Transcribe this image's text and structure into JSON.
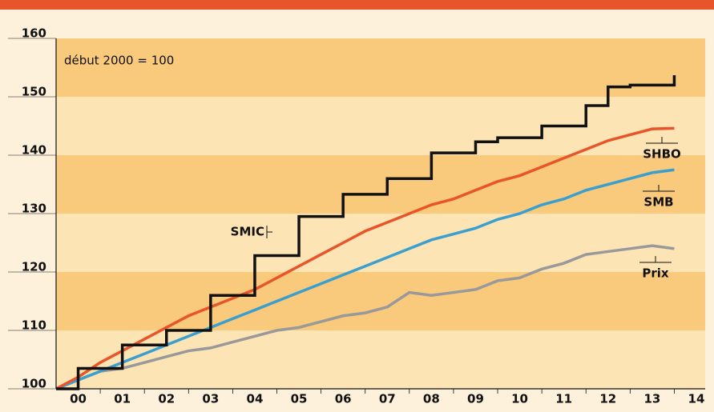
{
  "chart_data": {
    "type": "line",
    "annotation": "début 2000 = 100",
    "x": [
      2000,
      2000.5,
      2001,
      2001.5,
      2002,
      2002.5,
      2003,
      2003.5,
      2004,
      2004.5,
      2005,
      2005.5,
      2006,
      2006.5,
      2007,
      2007.5,
      2008,
      2008.5,
      2009,
      2009.5,
      2010,
      2010.5,
      2011,
      2011.5,
      2012,
      2012.5,
      2013,
      2013.5,
      2014
    ],
    "series": [
      {
        "name": "SMIC",
        "color": "#111111",
        "step": true,
        "values": [
          100,
          103.5,
          103.5,
          107.5,
          107.5,
          110,
          110,
          116,
          116,
          122.8,
          122.8,
          129.5,
          129.5,
          133.3,
          133.3,
          136,
          136,
          140.4,
          140.4,
          142.3,
          143,
          143,
          145,
          145,
          148.5,
          151.7,
          152,
          152,
          153.7
        ]
      },
      {
        "name": "SHBO",
        "color": "#e8552a",
        "values": [
          100,
          102,
          104.5,
          106.5,
          108.5,
          110.5,
          112.5,
          114,
          115.5,
          117,
          119,
          121,
          123,
          125,
          127,
          128.5,
          130,
          131.5,
          132.5,
          134,
          135.5,
          136.5,
          138,
          139.5,
          141,
          142.5,
          143.5,
          144.5,
          144.6
        ]
      },
      {
        "name": "SMB",
        "color": "#3a9fce",
        "values": [
          100,
          101.5,
          103,
          104.5,
          106,
          107.5,
          109,
          110.5,
          112,
          113.5,
          115,
          116.5,
          118,
          119.5,
          121,
          122.5,
          124,
          125.5,
          126.5,
          127.5,
          129,
          130,
          131.5,
          132.5,
          134,
          135,
          136,
          137,
          137.5
        ]
      },
      {
        "name": "Prix",
        "color": "#999999",
        "values": [
          100,
          101.5,
          103,
          103.5,
          104.5,
          105.5,
          106.5,
          107,
          108,
          109,
          110,
          110.5,
          111.5,
          112.5,
          113,
          114,
          116.5,
          116,
          116.5,
          117,
          118.5,
          119,
          120.5,
          121.5,
          123,
          123.5,
          124,
          124.5,
          124
        ]
      }
    ],
    "xlim": [
      2000,
      2014.7
    ],
    "xticks": [
      {
        "value": 2000.5,
        "label": "00"
      },
      {
        "value": 2001.5,
        "label": "01"
      },
      {
        "value": 2002.5,
        "label": "02"
      },
      {
        "value": 2003.5,
        "label": "03"
      },
      {
        "value": 2004.5,
        "label": "04"
      },
      {
        "value": 2005.5,
        "label": "05"
      },
      {
        "value": 2006.5,
        "label": "06"
      },
      {
        "value": 2007.5,
        "label": "07"
      },
      {
        "value": 2008.5,
        "label": "08"
      },
      {
        "value": 2009.5,
        "label": "09"
      },
      {
        "value": 2010.5,
        "label": "10"
      },
      {
        "value": 2011.5,
        "label": "11"
      },
      {
        "value": 2012.5,
        "label": "12"
      },
      {
        "value": 2013.5,
        "label": "13"
      },
      {
        "value": 2014.5,
        "label": "14"
      }
    ],
    "ylim": [
      100,
      160
    ],
    "yticks": [
      100,
      110,
      120,
      130,
      140,
      150,
      160
    ],
    "bands": true
  }
}
